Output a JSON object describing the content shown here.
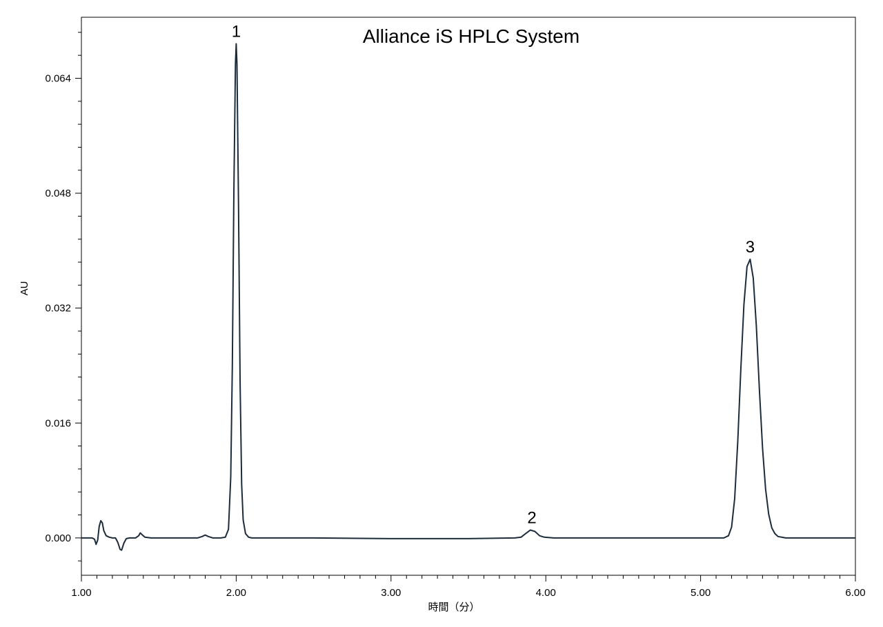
{
  "chart_data": {
    "type": "line",
    "title": "Alliance iS HPLC System",
    "xlabel": "時間（分）",
    "ylabel": "AU",
    "xlim": [
      1.0,
      6.0
    ],
    "ylim": [
      -0.0052,
      0.0725
    ],
    "x_ticks": [
      1.0,
      2.0,
      3.0,
      4.0,
      5.0,
      6.0
    ],
    "x_tick_labels": [
      "1.00",
      "2.00",
      "3.00",
      "4.00",
      "5.00",
      "6.00"
    ],
    "y_ticks": [
      0.0,
      0.016,
      0.032,
      0.048,
      0.064
    ],
    "y_tick_labels": [
      "0.000",
      "0.016",
      "0.032",
      "0.048",
      "0.064"
    ],
    "grid": false,
    "line_color": "#1c2b3a",
    "peaks": [
      {
        "label": "1",
        "rt": 2.0,
        "height": 0.0688
      },
      {
        "label": "2",
        "rt": 3.91,
        "height": 0.0011
      },
      {
        "label": "3",
        "rt": 5.32,
        "height": 0.0388
      }
    ],
    "series": [
      {
        "points": [
          [
            1.0,
            0.0
          ],
          [
            1.07,
            0.0
          ],
          [
            1.085,
            -0.0002
          ],
          [
            1.095,
            -0.0009
          ],
          [
            1.105,
            -0.0003
          ],
          [
            1.115,
            0.0016
          ],
          [
            1.125,
            0.0024
          ],
          [
            1.135,
            0.0021
          ],
          [
            1.145,
            0.001
          ],
          [
            1.16,
            0.0003
          ],
          [
            1.18,
            0.0001
          ],
          [
            1.2,
            0.0
          ],
          [
            1.22,
            0.0
          ],
          [
            1.235,
            -0.0006
          ],
          [
            1.25,
            -0.0016
          ],
          [
            1.26,
            -0.0017
          ],
          [
            1.275,
            -0.0007
          ],
          [
            1.29,
            -0.0001
          ],
          [
            1.31,
            0.0
          ],
          [
            1.35,
            0.0
          ],
          [
            1.37,
            0.0003
          ],
          [
            1.38,
            0.0007
          ],
          [
            1.39,
            0.0005
          ],
          [
            1.41,
            0.0001
          ],
          [
            1.45,
            0.0
          ],
          [
            1.6,
            0.0
          ],
          [
            1.75,
            0.0
          ],
          [
            1.78,
            0.0002
          ],
          [
            1.8,
            0.0004
          ],
          [
            1.82,
            0.0002
          ],
          [
            1.85,
            0.0
          ],
          [
            1.9,
            0.0
          ],
          [
            1.93,
            0.0001
          ],
          [
            1.95,
            0.0012
          ],
          [
            1.965,
            0.0085
          ],
          [
            1.975,
            0.024
          ],
          [
            1.985,
            0.048
          ],
          [
            1.995,
            0.066
          ],
          [
            2.0,
            0.0688
          ],
          [
            2.005,
            0.066
          ],
          [
            2.015,
            0.046
          ],
          [
            2.025,
            0.022
          ],
          [
            2.035,
            0.0075
          ],
          [
            2.045,
            0.0025
          ],
          [
            2.06,
            0.0006
          ],
          [
            2.08,
            0.0001
          ],
          [
            2.1,
            0.0
          ],
          [
            2.5,
            0.0
          ],
          [
            3.0,
            -0.0001
          ],
          [
            3.5,
            -0.0001
          ],
          [
            3.8,
            0.0
          ],
          [
            3.84,
            0.0001
          ],
          [
            3.87,
            0.0006
          ],
          [
            3.9,
            0.0011
          ],
          [
            3.93,
            0.0009
          ],
          [
            3.96,
            0.0003
          ],
          [
            3.99,
            0.0001
          ],
          [
            4.05,
            0.0
          ],
          [
            4.5,
            0.0
          ],
          [
            5.0,
            0.0
          ],
          [
            5.15,
            0.0
          ],
          [
            5.18,
            0.0003
          ],
          [
            5.2,
            0.0015
          ],
          [
            5.22,
            0.0055
          ],
          [
            5.24,
            0.0135
          ],
          [
            5.26,
            0.0235
          ],
          [
            5.28,
            0.0325
          ],
          [
            5.3,
            0.0378
          ],
          [
            5.32,
            0.0388
          ],
          [
            5.34,
            0.0362
          ],
          [
            5.36,
            0.0295
          ],
          [
            5.38,
            0.0205
          ],
          [
            5.4,
            0.0125
          ],
          [
            5.42,
            0.0068
          ],
          [
            5.44,
            0.0033
          ],
          [
            5.46,
            0.0014
          ],
          [
            5.48,
            0.0006
          ],
          [
            5.5,
            0.0002
          ],
          [
            5.55,
            0.0
          ],
          [
            5.8,
            0.0
          ],
          [
            6.0,
            0.0
          ]
        ]
      }
    ]
  }
}
